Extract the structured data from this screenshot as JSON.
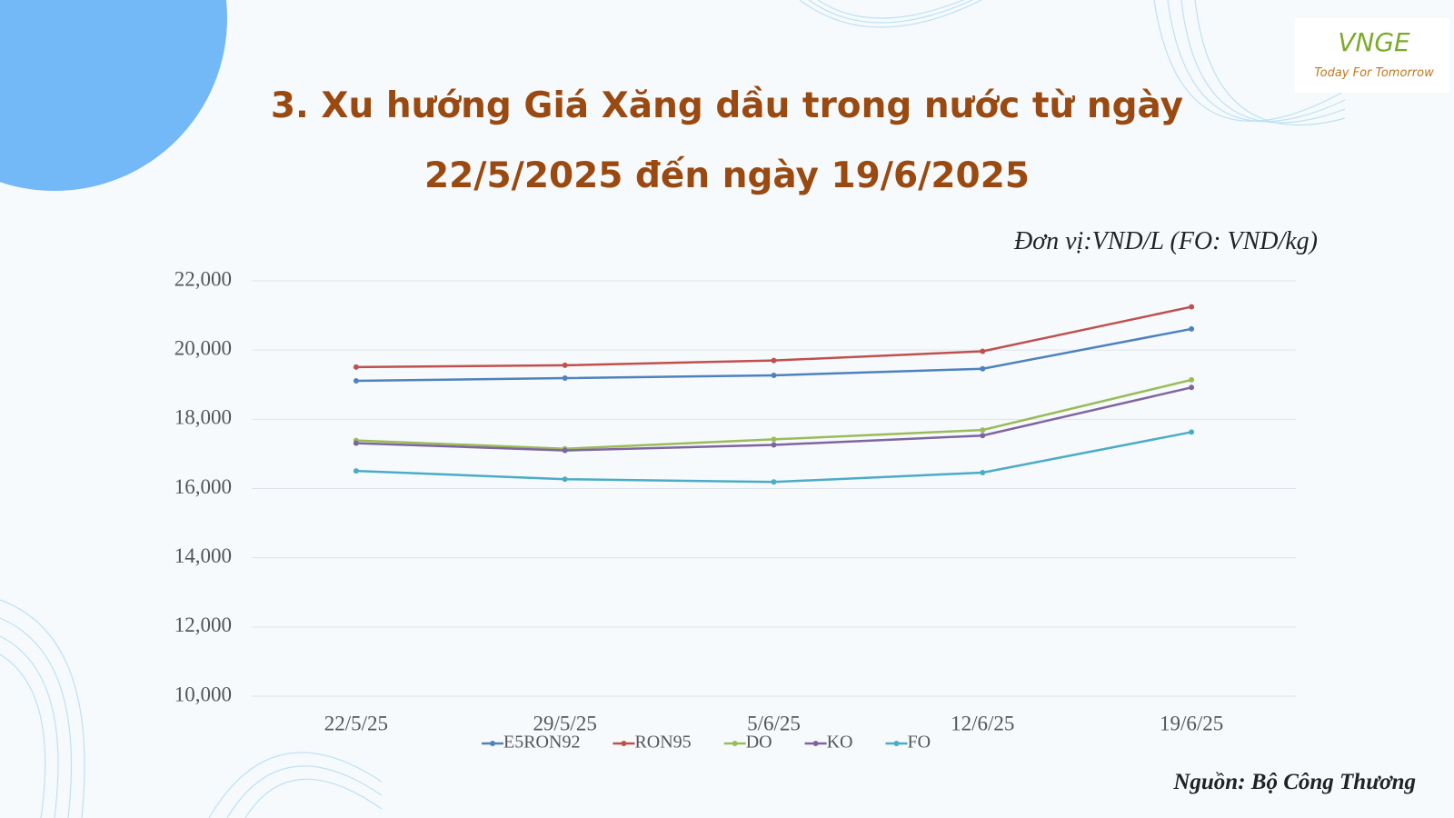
{
  "chart_data": {
    "type": "line",
    "title": "3. Xu hướng Giá Xăng dầu trong nước từ ngày 22/5/2025 đến ngày 19/6/2025",
    "unit_note": "Đơn vị:VND/L (FO: VND/kg)",
    "source": "Nguồn: Bộ Công Thương",
    "categories": [
      "22/5/25",
      "29/5/25",
      "5/6/25",
      "12/6/25",
      "19/6/25"
    ],
    "series": [
      {
        "name": "E5RON92",
        "color": "#4f81bd",
        "values": [
          19110,
          19190,
          19270,
          19460,
          20610
        ]
      },
      {
        "name": "RON95",
        "color": "#c0504d",
        "values": [
          19510,
          19560,
          19700,
          19965,
          21250
        ]
      },
      {
        "name": "DO",
        "color": "#9bbb59",
        "values": [
          17390,
          17150,
          17420,
          17690,
          19140
        ]
      },
      {
        "name": "KO",
        "color": "#8064a2",
        "values": [
          17310,
          17100,
          17260,
          17530,
          18920
        ]
      },
      {
        "name": "FO",
        "color": "#4bacc6",
        "values": [
          16510,
          16270,
          16190,
          16460,
          17630
        ]
      }
    ],
    "ylim": [
      10000,
      22000
    ],
    "yticks": [
      {
        "value": 10000,
        "label": "10,000"
      },
      {
        "value": 12000,
        "label": "12,000"
      },
      {
        "value": 14000,
        "label": "14,000"
      },
      {
        "value": 16000,
        "label": "16,000"
      },
      {
        "value": 18000,
        "label": "18,000"
      },
      {
        "value": 20000,
        "label": "20,000"
      },
      {
        "value": 22000,
        "label": "22,000"
      }
    ],
    "grid": true,
    "legend": "bottom"
  },
  "logo": {
    "brand": "VNGE",
    "tagline": "Today For Tomorrow"
  }
}
